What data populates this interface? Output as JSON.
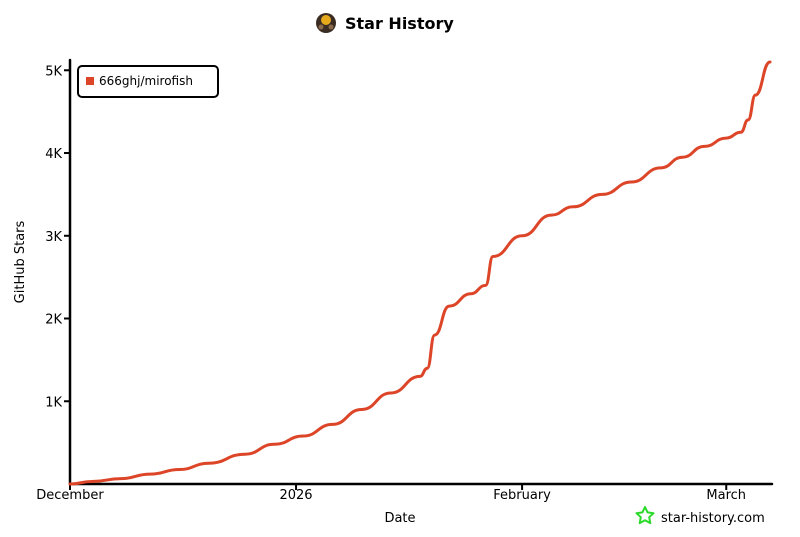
{
  "title": "Star History",
  "footer": {
    "text": "star-history.com",
    "icon": "star-icon",
    "icon_color": "#2bd92b"
  },
  "colors": {
    "series": "#dd4528",
    "axis": "#000000",
    "background": "#ffffff"
  },
  "chart_data": {
    "type": "line",
    "title": "Star History",
    "xlabel": "Date",
    "ylabel": "GitHub Stars",
    "x_tick_labels": [
      "December",
      "2026",
      "February",
      "March"
    ],
    "x_tick_dates": [
      "2025-12-01",
      "2026-01-01",
      "2026-02-01",
      "2026-03-01"
    ],
    "y_tick_labels": [
      "1K",
      "2K",
      "3K",
      "4K",
      "5K"
    ],
    "y_tick_values": [
      1000,
      2000,
      3000,
      4000,
      5000
    ],
    "xlim": [
      "2025-12-01",
      "2026-03-07"
    ],
    "ylim": [
      0,
      5100
    ],
    "legend_position": "top-left",
    "grid": false,
    "series": [
      {
        "name": "666ghj/mirofish",
        "color": "#dd4528",
        "points": [
          [
            "2025-12-01",
            0
          ],
          [
            "2025-12-04",
            30
          ],
          [
            "2025-12-08",
            65
          ],
          [
            "2025-12-12",
            120
          ],
          [
            "2025-12-16",
            175
          ],
          [
            "2025-12-20",
            250
          ],
          [
            "2025-12-25",
            360
          ],
          [
            "2025-12-29",
            480
          ],
          [
            "2026-01-02",
            580
          ],
          [
            "2026-01-06",
            720
          ],
          [
            "2026-01-10",
            900
          ],
          [
            "2026-01-14",
            1100
          ],
          [
            "2026-01-18",
            1300
          ],
          [
            "2026-01-19",
            1400
          ],
          [
            "2026-01-20",
            1800
          ],
          [
            "2026-01-22",
            2150
          ],
          [
            "2026-01-25",
            2300
          ],
          [
            "2026-01-27",
            2400
          ],
          [
            "2026-01-28",
            2750
          ],
          [
            "2026-02-01",
            3000
          ],
          [
            "2026-02-05",
            3250
          ],
          [
            "2026-02-08",
            3350
          ],
          [
            "2026-02-12",
            3500
          ],
          [
            "2026-02-16",
            3650
          ],
          [
            "2026-02-20",
            3820
          ],
          [
            "2026-02-23",
            3950
          ],
          [
            "2026-02-26",
            4080
          ],
          [
            "2026-03-01",
            4180
          ],
          [
            "2026-03-03",
            4250
          ],
          [
            "2026-03-04",
            4400
          ],
          [
            "2026-03-05",
            4700
          ],
          [
            "2026-03-07",
            5100
          ]
        ]
      }
    ]
  }
}
